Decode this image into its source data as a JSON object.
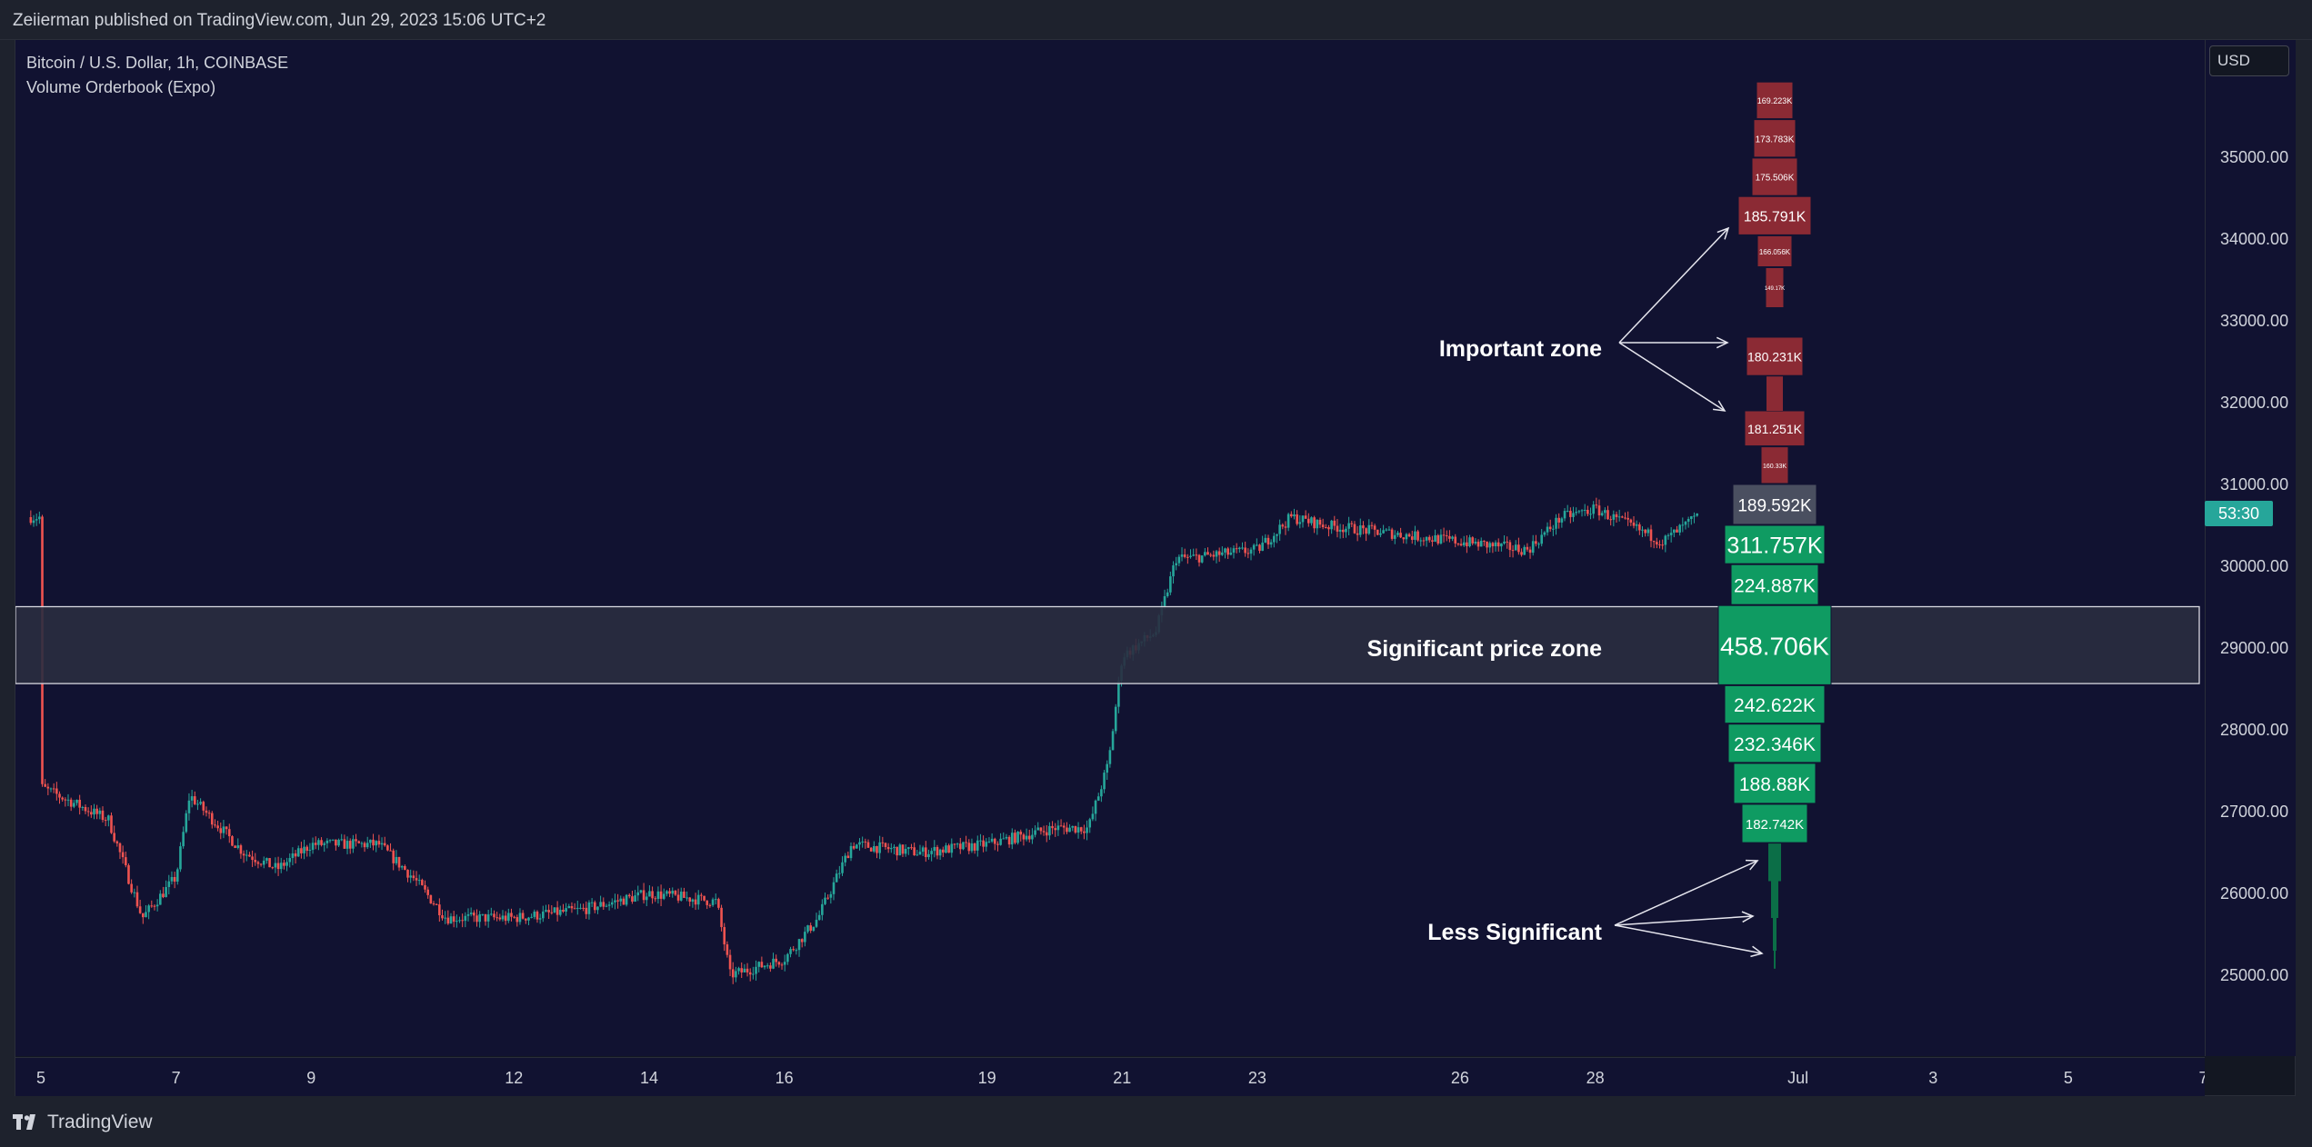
{
  "header": {
    "published": "Zeiierman published on TradingView.com, Jun 29, 2023 15:06 UTC+2"
  },
  "legend": {
    "symbol": "Bitcoin / U.S. Dollar, 1h, COINBASE",
    "indicator": "Volume Orderbook (Expo)"
  },
  "price_axis": {
    "currency": "USD",
    "countdown": "53:30"
  },
  "footer": {
    "brand": "TradingView"
  },
  "colors": {
    "background": "#111231",
    "up": "#26a69a",
    "down": "#ef5350",
    "ask_box": "#8b2a34",
    "bid_box": "#0f9b62",
    "current_box": "#4a4f60",
    "zone_fill": "#2a2d40"
  },
  "chart_data": {
    "type": "candlestick",
    "symbol": "Bitcoin / U.S. Dollar",
    "interval": "1h",
    "exchange": "COINBASE",
    "y_ticks": [
      "35000.00",
      "34000.00",
      "33000.00",
      "32000.00",
      "31000.00",
      "30000.00",
      "29000.00",
      "28000.00",
      "27000.00",
      "26000.00",
      "25000.00"
    ],
    "x_ticks": [
      "5",
      "7",
      "9",
      "12",
      "14",
      "16",
      "19",
      "21",
      "23",
      "26",
      "28",
      "Jul",
      "3",
      "5",
      "7"
    ],
    "ylim": [
      24000,
      36000
    ],
    "price_path": [
      [
        "5",
        27300
      ],
      [
        "6",
        26900
      ],
      [
        "6.5",
        25700
      ],
      [
        "7",
        26200
      ],
      [
        "7.2",
        27200
      ],
      [
        "8",
        26500
      ],
      [
        "8.5",
        26300
      ],
      [
        "9",
        26600
      ],
      [
        "10",
        26600
      ],
      [
        "10.5",
        26200
      ],
      [
        "11",
        25700
      ],
      [
        "12",
        25700
      ],
      [
        "13",
        25800
      ],
      [
        "14",
        26000
      ],
      [
        "15",
        25900
      ],
      [
        "15.2",
        25000
      ],
      [
        "16",
        25200
      ],
      [
        "16.5",
        25700
      ],
      [
        "17",
        26600
      ],
      [
        "18",
        26500
      ],
      [
        "19",
        26600
      ],
      [
        "20",
        26800
      ],
      [
        "20.5",
        26800
      ],
      [
        "20.8",
        27600
      ],
      [
        "21",
        28900
      ],
      [
        "21.5",
        29200
      ],
      [
        "21.8",
        30100
      ],
      [
        "22",
        30100
      ],
      [
        "23",
        30200
      ],
      [
        "23.5",
        30600
      ],
      [
        "24",
        30500
      ],
      [
        "25",
        30400
      ],
      [
        "26",
        30300
      ],
      [
        "27",
        30200
      ],
      [
        "27.5",
        30600
      ],
      [
        "28",
        30700
      ],
      [
        "29",
        30300
      ],
      [
        "29.5",
        30600
      ]
    ],
    "volume_profile": [
      {
        "label": "169.223K",
        "side": "ask"
      },
      {
        "label": "173.783K",
        "side": "ask"
      },
      {
        "label": "175.506K",
        "side": "ask"
      },
      {
        "label": "185.791K",
        "side": "ask"
      },
      {
        "label": "166.056K",
        "side": "ask"
      },
      {
        "label": "149.17K",
        "side": "ask"
      },
      {
        "label": "180.231K",
        "side": "ask"
      },
      {
        "label": "181.251K",
        "side": "ask"
      },
      {
        "label": "160.33K",
        "side": "ask"
      },
      {
        "label": "189.592K",
        "side": "current"
      },
      {
        "label": "311.757K",
        "side": "bid"
      },
      {
        "label": "224.887K",
        "side": "bid"
      },
      {
        "label": "458.706K",
        "side": "bid"
      },
      {
        "label": "242.622K",
        "side": "bid"
      },
      {
        "label": "232.346K",
        "side": "bid"
      },
      {
        "label": "188.88K",
        "side": "bid"
      },
      {
        "label": "182.742K",
        "side": "bid"
      }
    ],
    "annotations": {
      "important": "Important zone",
      "significant": "Significant price zone",
      "less": "Less Significant"
    }
  }
}
